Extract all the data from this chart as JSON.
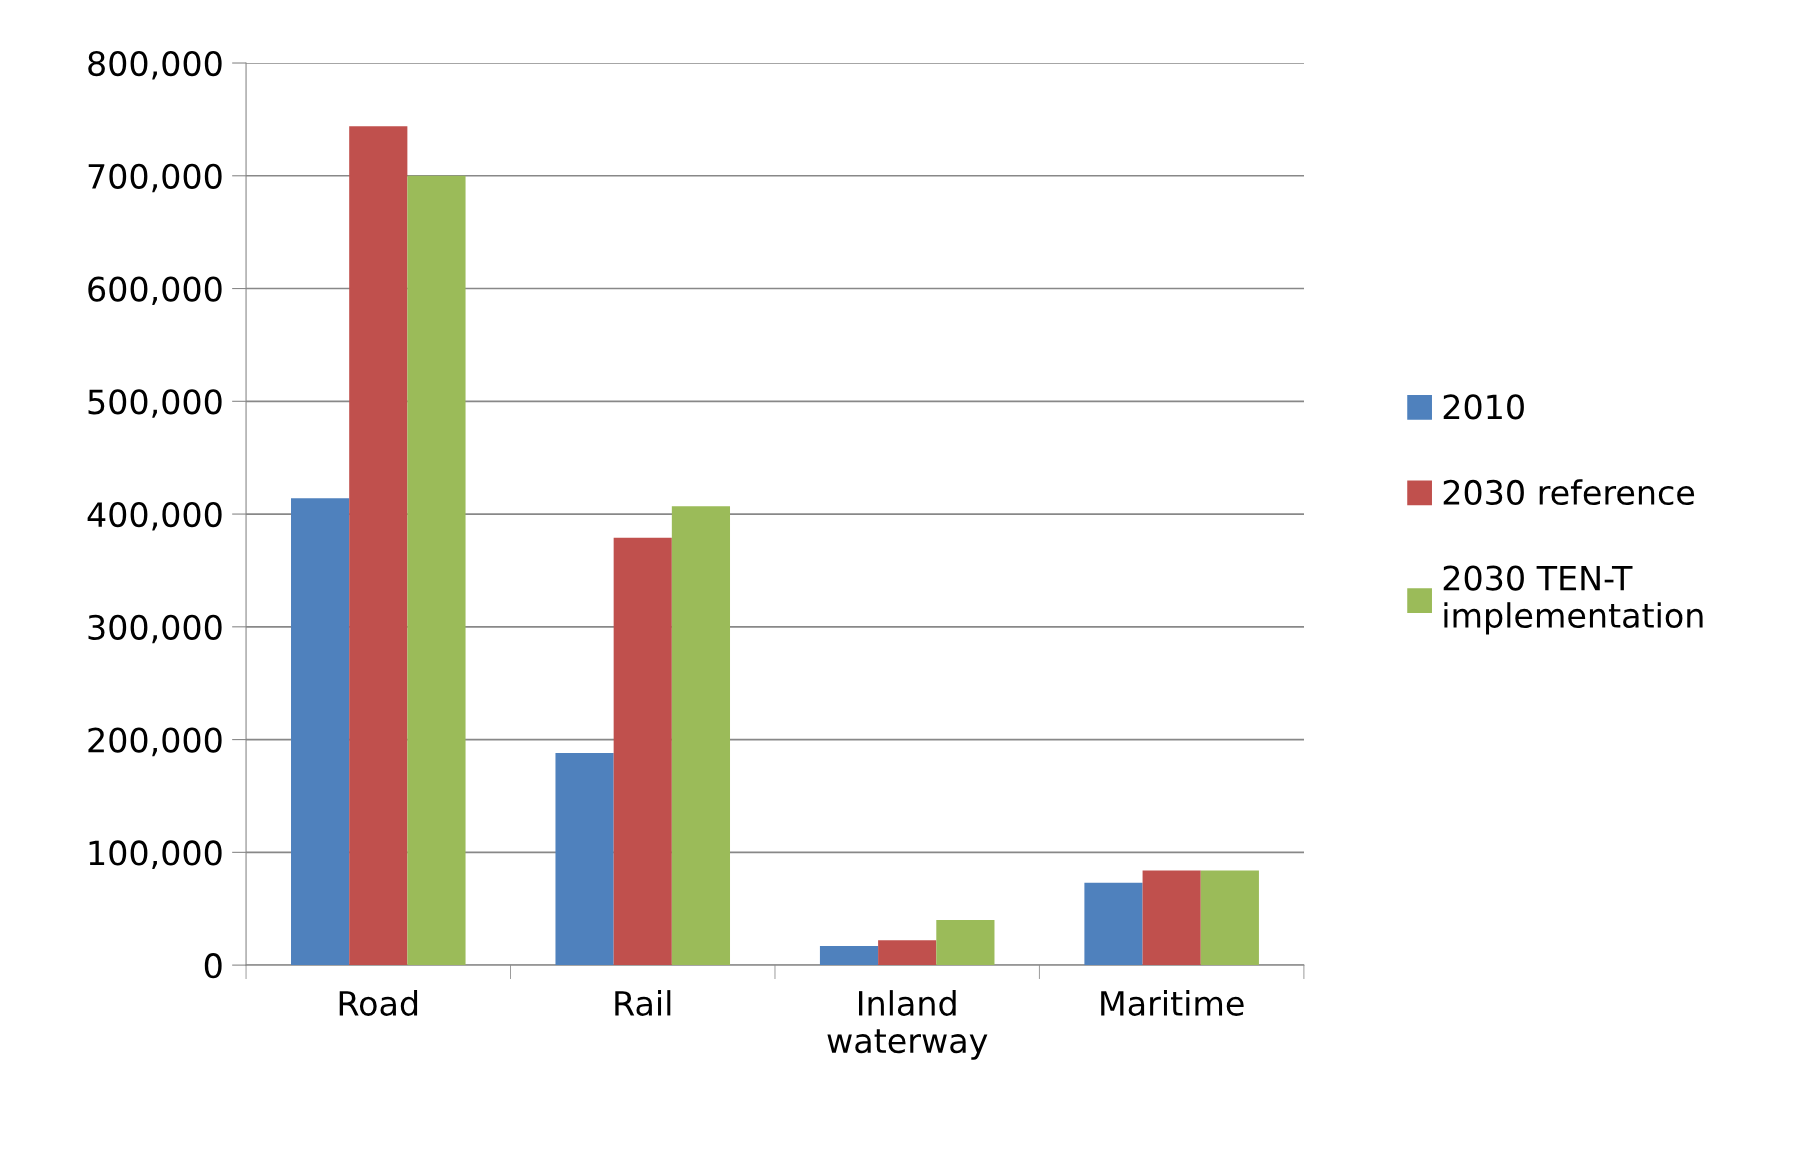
{
  "chart_data": {
    "type": "bar",
    "categories": [
      "Road",
      "Rail",
      "Inland\nwaterway",
      "Maritime"
    ],
    "series": [
      {
        "name": "2010",
        "color": "#4f81bd",
        "values": [
          414000,
          188000,
          17000,
          73000
        ]
      },
      {
        "name": "2030 reference",
        "color": "#c0504d",
        "values": [
          744000,
          379000,
          22000,
          84000
        ]
      },
      {
        "name": "2030 TEN-T\nimplementation",
        "color": "#9bbb59",
        "values": [
          700000,
          407000,
          40000,
          84000
        ]
      }
    ],
    "ylim": [
      0,
      800000
    ],
    "yticks": [
      0,
      {
        "value": 100000,
        "label": "100,000"
      },
      {
        "value": 200000,
        "label": "200,000"
      },
      {
        "value": 300000,
        "label": "300,000"
      },
      {
        "value": 400000,
        "label": "400,000"
      },
      {
        "value": 500000,
        "label": "500,000"
      },
      {
        "value": 600000,
        "label": "600,000"
      },
      {
        "value": 700000,
        "label": "700,000"
      },
      {
        "value": 800000,
        "label": "800,000"
      }
    ],
    "grid": "y",
    "legend": "right"
  }
}
